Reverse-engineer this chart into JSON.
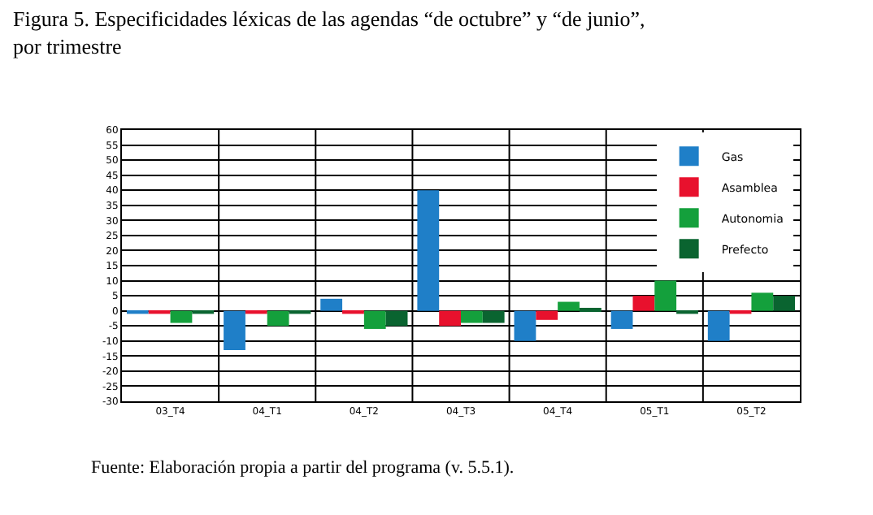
{
  "chart_data": {
    "type": "bar",
    "title": "Figura 5. Especificidades léxicas de las agendas “de octubre” y “de junio”, por trimestre",
    "categories": [
      "03_T4",
      "04_T1",
      "04_T2",
      "04_T3",
      "04_T4",
      "05_T1",
      "05_T2"
    ],
    "series": [
      {
        "name": "Gas",
        "color": "#1f7fc8",
        "values": [
          -1,
          -13,
          4,
          40,
          -10,
          -6,
          -10
        ]
      },
      {
        "name": "Asamblea",
        "color": "#e8112d",
        "values": [
          -1,
          -1,
          -1,
          -5,
          -3,
          5,
          -1
        ]
      },
      {
        "name": "Autonomia",
        "color": "#14a03c",
        "values": [
          -4,
          -5,
          -6,
          -4,
          3,
          10,
          6
        ]
      },
      {
        "name": "Prefecto",
        "color": "#0a6430",
        "values": [
          -1,
          -1,
          -5,
          -4,
          1,
          -1,
          5
        ]
      }
    ],
    "ylim": [
      -30,
      60
    ],
    "yticks": [
      -30,
      -25,
      -20,
      -15,
      -10,
      -5,
      0,
      5,
      10,
      15,
      20,
      25,
      30,
      35,
      40,
      45,
      50,
      55,
      60
    ],
    "grid": true,
    "legend": "top right",
    "annotations": [
      "Fuente: Elaboración propia a partir del programa (v. 5.5.1)."
    ]
  }
}
